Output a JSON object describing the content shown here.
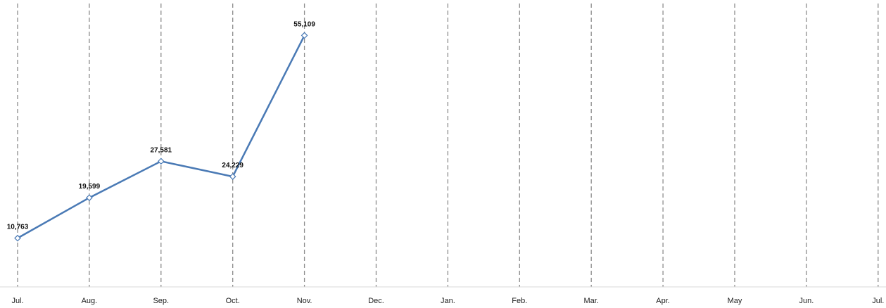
{
  "chart_data": {
    "type": "line",
    "categories": [
      "Jul.",
      "Aug.",
      "Sep.",
      "Oct.",
      "Nov.",
      "Dec.",
      "Jan.",
      "Feb.",
      "Mar.",
      "Apr.",
      "May",
      "Jun.",
      "Jul."
    ],
    "series": [
      {
        "values": [
          10763,
          19599,
          27581,
          24229,
          55109,
          null,
          null,
          null,
          null,
          null,
          null,
          null,
          null
        ],
        "data_labels": [
          "10,763",
          "19,599",
          "27,581",
          "24,229",
          "55,109"
        ],
        "color": "#4a7ab5"
      }
    ],
    "title": "",
    "xlabel": "",
    "ylabel": "",
    "ylim": [
      0,
      60000
    ],
    "grid": "vertical dashed",
    "legend": "none"
  }
}
